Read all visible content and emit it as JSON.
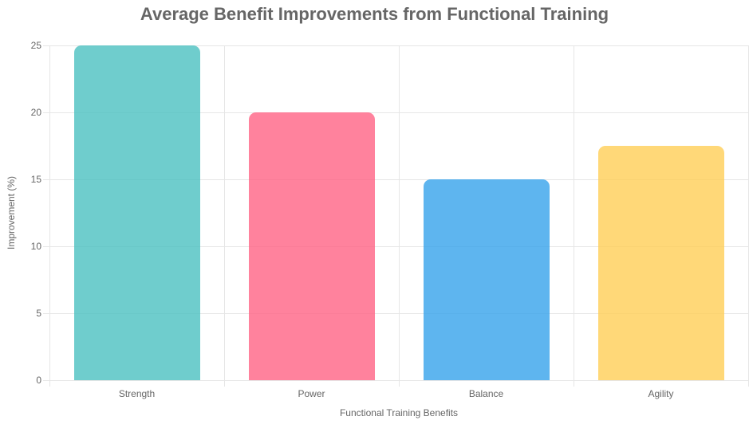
{
  "colors": {
    "text": "#666666",
    "grid": "#e6e6e6"
  },
  "chart_data": {
    "type": "bar",
    "title": "Average Benefit Improvements from Functional Training",
    "xlabel": "Functional Training Benefits",
    "ylabel": "Improvement (%)",
    "categories": [
      "Strength",
      "Power",
      "Balance",
      "Agility"
    ],
    "values": [
      25,
      20,
      15,
      17.5
    ],
    "bar_colors": [
      "rgba(75,192,192,0.8)",
      "rgba(255,99,132,0.8)",
      "rgba(54,162,235,0.8)",
      "rgba(255,206,86,0.8)"
    ],
    "ylim": [
      0,
      25
    ],
    "yticks": [
      0,
      5,
      10,
      15,
      20,
      25
    ],
    "grid": "on",
    "legend": "none"
  }
}
